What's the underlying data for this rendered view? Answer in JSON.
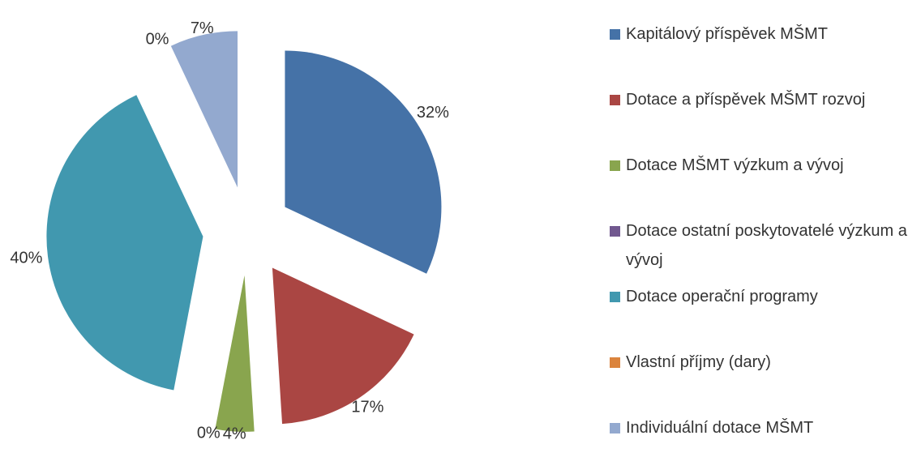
{
  "chart_data": {
    "type": "pie",
    "categories": [
      "Kapitálový příspěvek MŠMT",
      "Dotace a příspěvek MŠMT rozvoj",
      "Dotace MŠMT výzkum a vývoj",
      "Dotace ostatní poskytovatelé výzkum a vývoj",
      "Dotace operační programy",
      "Vlastní příjmy (dary)",
      "Individuální dotace MŠMT"
    ],
    "values": [
      32,
      17,
      4,
      0,
      40,
      0,
      7
    ],
    "value_labels": [
      "32%",
      "17%",
      "4%",
      "0%",
      "40%",
      "0%",
      "7%"
    ],
    "colors": [
      "#4572a7",
      "#aa4643",
      "#89a54e",
      "#71588f",
      "#4198af",
      "#db843d",
      "#93a9cf"
    ],
    "legend": "right"
  }
}
